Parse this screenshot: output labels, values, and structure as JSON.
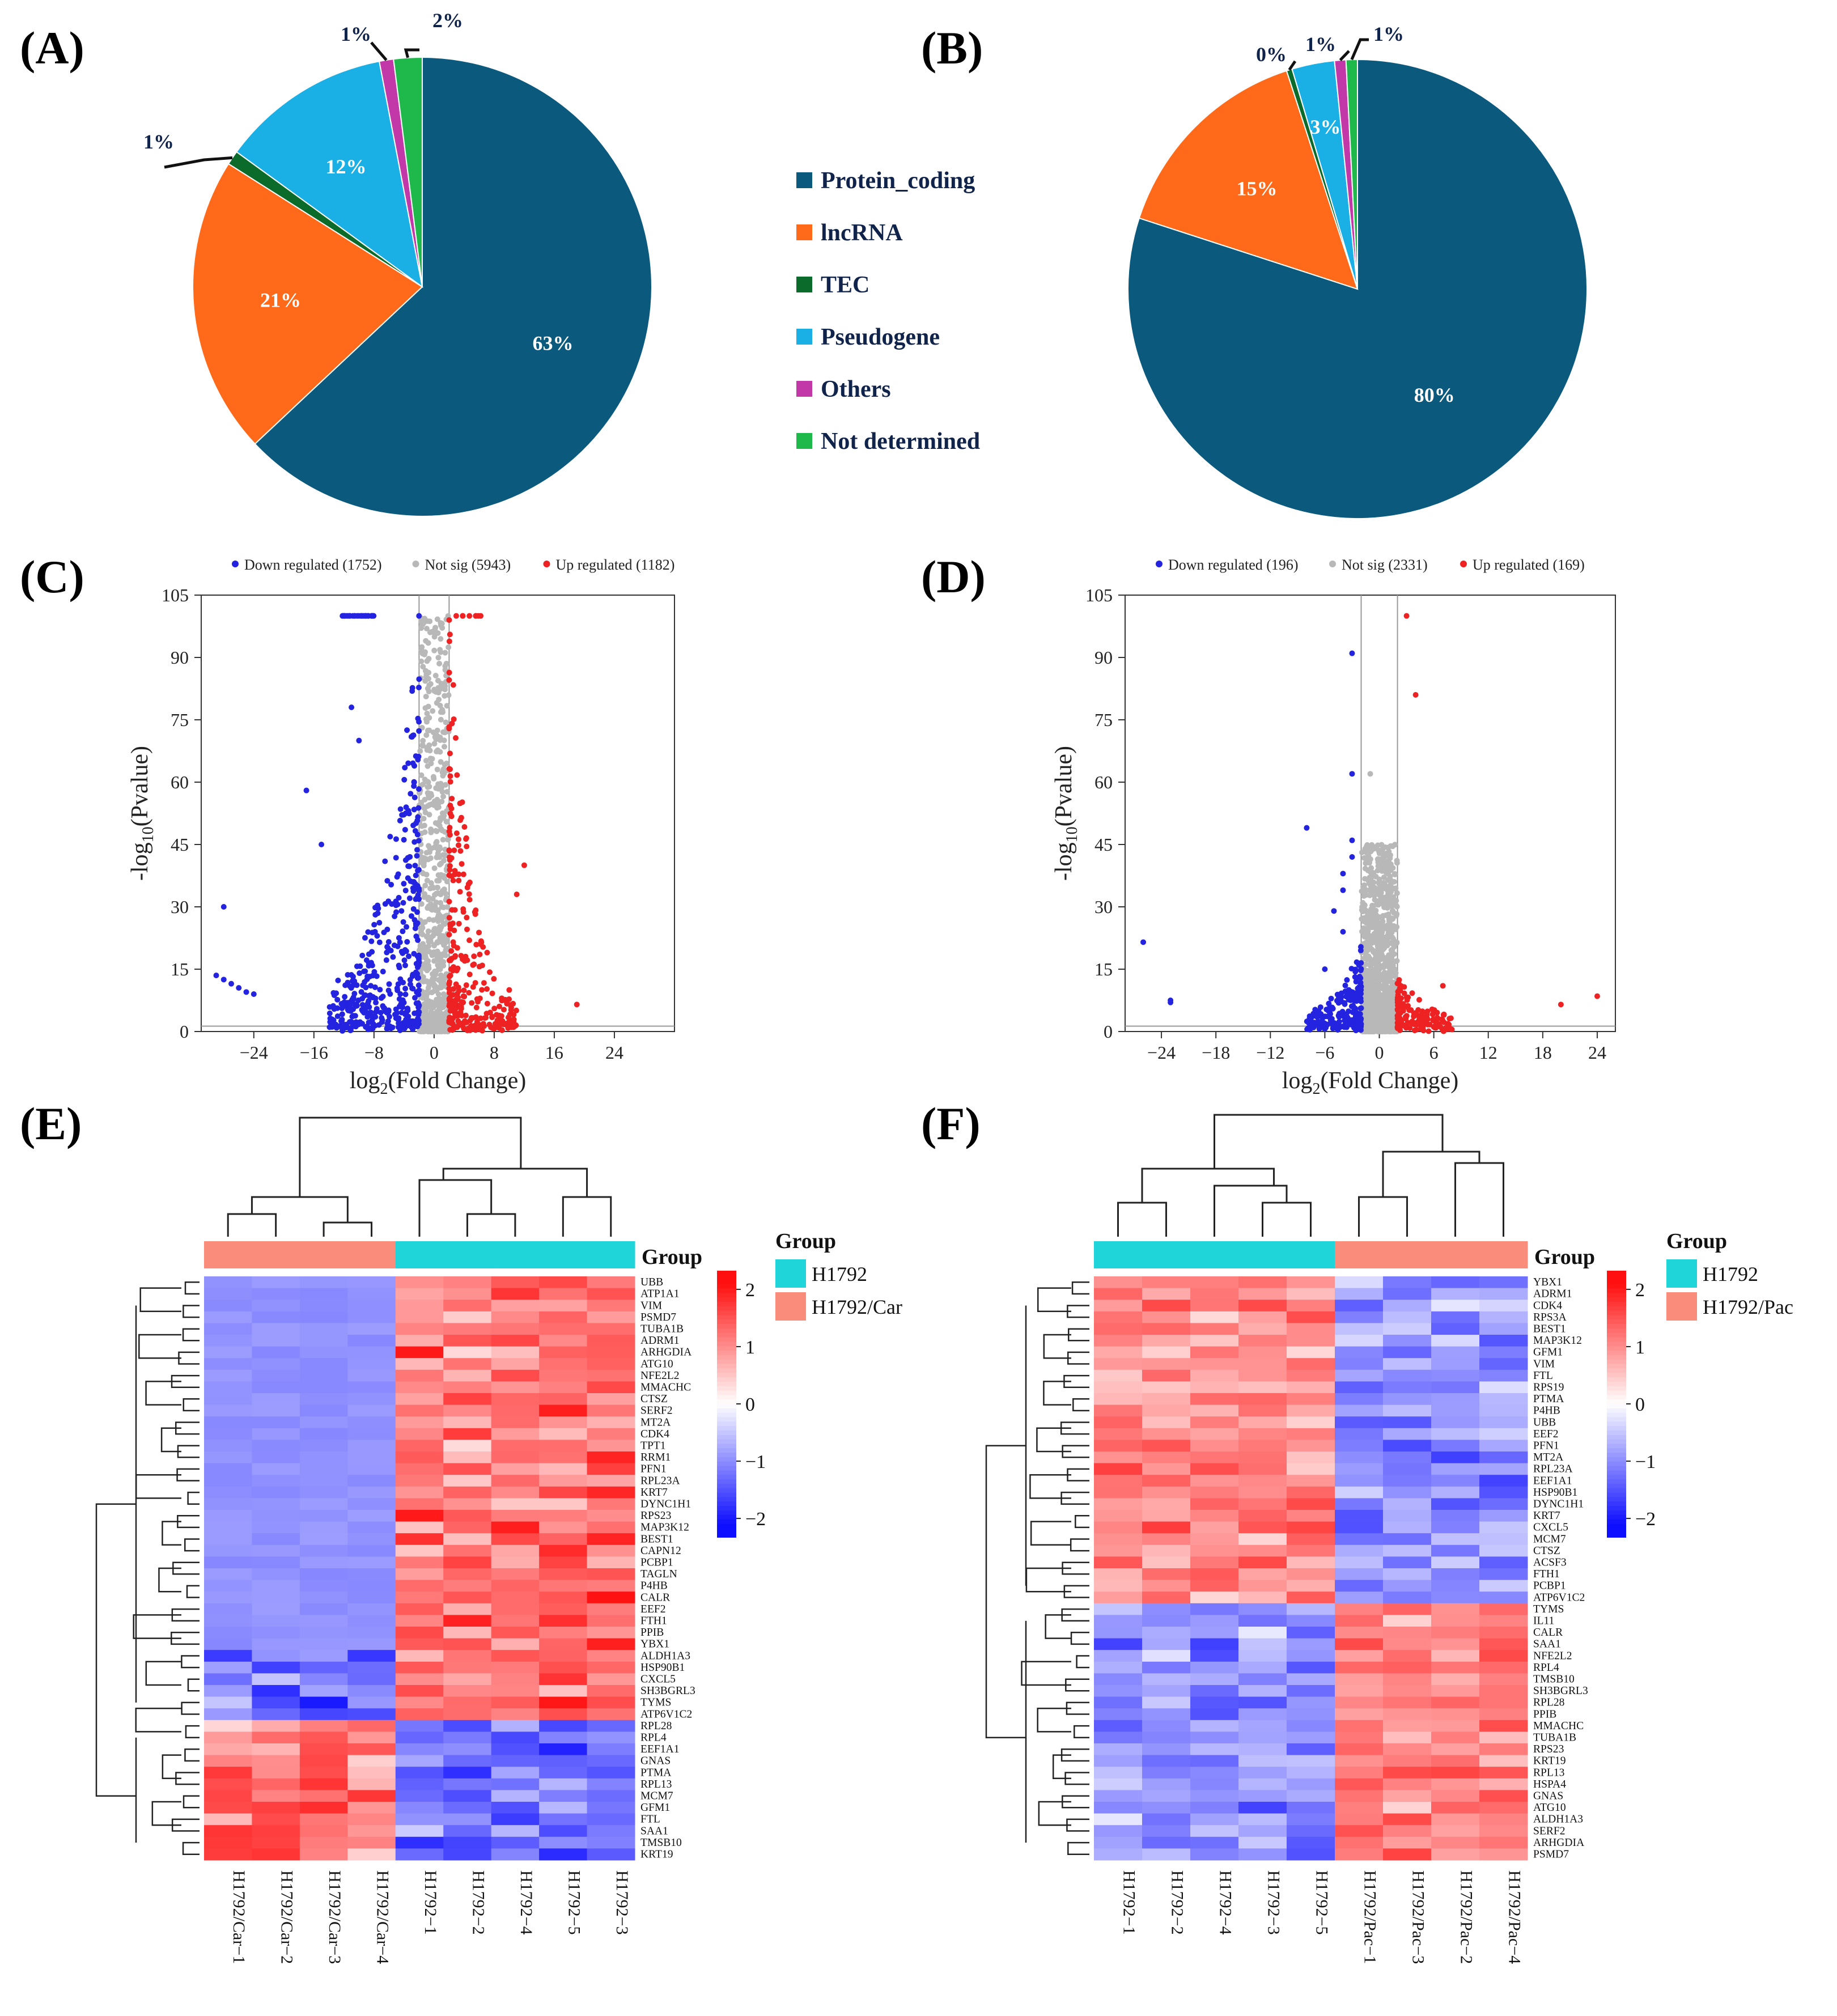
{
  "colors": {
    "protein_coding": "#0b5a7e",
    "lncrna": "#ff6a1a",
    "tec": "#0b6b2a",
    "pseudogene": "#1ab0e6",
    "others": "#c238a8",
    "not_determined": "#1fb84a",
    "down": "#2323e0",
    "notsig": "#b8b8b8",
    "up": "#ee2222",
    "h1792": "#1fd5d9",
    "h1792_treat": "#fa8c7c",
    "dark_text": "#10234a"
  },
  "legend_pie": {
    "items": [
      "Protein_coding",
      "lncRNA",
      "TEC",
      "Pseudogene",
      "Others",
      "Not determined"
    ]
  },
  "chart_data": [
    {
      "id": "A",
      "panel_label": "(A)",
      "type": "pie",
      "labels": [
        "Protein_coding",
        "lncRNA",
        "TEC",
        "Pseudogene",
        "Others",
        "Not determined"
      ],
      "values": [
        63,
        21,
        1,
        12,
        1,
        2
      ],
      "value_labels": [
        "63%",
        "21%",
        "1%",
        "12%",
        "1%",
        "2%"
      ]
    },
    {
      "id": "B",
      "panel_label": "(B)",
      "type": "pie",
      "labels": [
        "Protein_coding",
        "lncRNA",
        "TEC",
        "Pseudogene",
        "Others",
        "Not determined"
      ],
      "values": [
        80,
        15,
        0.4,
        3,
        0.8,
        0.8
      ],
      "value_labels": [
        "80%",
        "15%",
        "0%",
        "3%",
        "1%",
        "1%"
      ]
    },
    {
      "id": "C",
      "panel_label": "(C)",
      "type": "scatter",
      "legend": [
        "Down regulated (1752)",
        "Not sig (5943)",
        "Up regulated (1182)"
      ],
      "xlabel_main": "log",
      "xlabel_sub": "2",
      "xlabel_rest": "(Fold Change)",
      "ylabel_main": "-log",
      "ylabel_sub": "10",
      "ylabel_rest": "(Pvalue)",
      "xlim": [
        -31,
        32
      ],
      "ylim": [
        0,
        105
      ],
      "xticks": [
        -24,
        -16,
        -8,
        0,
        8,
        16,
        24
      ],
      "yticks": [
        0,
        15,
        30,
        45,
        60,
        75,
        90,
        105
      ],
      "fc_threshold": 2,
      "counts": [
        1752,
        5943,
        1182
      ],
      "outliers": [
        [
          -28,
          30
        ],
        [
          -29,
          13.5
        ],
        [
          -28,
          12.5
        ],
        [
          -27,
          11.5
        ],
        [
          -26,
          10.5
        ],
        [
          -25,
          9.5
        ],
        [
          -24,
          9
        ],
        [
          -17,
          58
        ],
        [
          -15,
          45
        ],
        [
          -11,
          78
        ],
        [
          -10,
          70
        ],
        [
          12,
          40
        ],
        [
          11,
          33
        ],
        [
          19,
          6.5
        ],
        [
          10,
          10
        ],
        [
          9,
          8
        ]
      ]
    },
    {
      "id": "D",
      "panel_label": "(D)",
      "type": "scatter",
      "legend": [
        "Down regulated (196)",
        "Not sig (2331)",
        "Up regulated (169)"
      ],
      "xlabel_main": "log",
      "xlabel_sub": "2",
      "xlabel_rest": "(Fold Change)",
      "ylabel_main": "-log",
      "ylabel_sub": "10",
      "ylabel_rest": "(Pvalue)",
      "xlim": [
        -28,
        26
      ],
      "ylim": [
        0,
        105
      ],
      "xticks": [
        -24,
        -18,
        -12,
        -6,
        0,
        6,
        12,
        18,
        24
      ],
      "yticks": [
        0,
        15,
        30,
        45,
        60,
        75,
        90,
        105
      ],
      "fc_threshold": 2,
      "counts": [
        196,
        2331,
        169
      ],
      "outliers": [
        [
          -3,
          91
        ],
        [
          -3,
          62
        ],
        [
          -8,
          49
        ],
        [
          -26,
          21.5
        ],
        [
          -23,
          7.5
        ],
        [
          -23,
          7
        ],
        [
          3,
          100
        ],
        [
          4,
          81
        ],
        [
          -3,
          46
        ],
        [
          -3,
          42
        ],
        [
          -4,
          38
        ],
        [
          -4,
          34
        ],
        [
          -5,
          29
        ],
        [
          -4,
          24
        ],
        [
          -6,
          15
        ],
        [
          20,
          6.5
        ],
        [
          24,
          8.5
        ],
        [
          7,
          11
        ],
        [
          -1,
          62
        ]
      ]
    },
    {
      "id": "E",
      "panel_label": "(E)",
      "type": "heatmap",
      "group_title": "Group",
      "legend_title": "Group",
      "groups": [
        "H1792",
        "H1792/Car"
      ],
      "samples": [
        "H1792/Car−1",
        "H1792/Car−2",
        "H1792/Car−3",
        "H1792/Car−4",
        "H1792−1",
        "H1792−2",
        "H1792−4",
        "H1792−5",
        "H1792−3"
      ],
      "sample_groups": [
        1,
        1,
        1,
        1,
        0,
        0,
        0,
        0,
        0
      ],
      "genes": [
        "UBB",
        "ATP1A1",
        "VIM",
        "PSMD7",
        "TUBA1B",
        "ADRM1",
        "ARHGDIA",
        "ATG10",
        "NFE2L2",
        "MMACHC",
        "CTSZ",
        "SERF2",
        "MT2A",
        "CDK4",
        "TPT1",
        "RRM1",
        "PFN1",
        "RPL23A",
        "KRT7",
        "DYNC1H1",
        "RPS23",
        "MAP3K12",
        "BEST1",
        "CAPN12",
        "PCBP1",
        "TAGLN",
        "P4HB",
        "CALR",
        "EEF2",
        "FTH1",
        "PPIB",
        "YBX1",
        "ALDH1A3",
        "HSP90B1",
        "CXCL5",
        "SH3BGRL3",
        "TYMS",
        "ATP6V1C2",
        "RPL28",
        "RPL4",
        "EEF1A1",
        "GNAS",
        "PTMA",
        "RPL13",
        "MCM7",
        "GFM1",
        "FTL",
        "SAA1",
        "TMSB10",
        "KRT19"
      ],
      "color_scale": [
        -2,
        2
      ],
      "colorbar_ticks": [
        "2",
        "1",
        "0",
        "−1",
        "−2"
      ]
    },
    {
      "id": "F",
      "panel_label": "(F)",
      "type": "heatmap",
      "group_title": "Group",
      "legend_title": "Group",
      "groups": [
        "H1792",
        "H1792/Pac"
      ],
      "samples": [
        "H1792−1",
        "H1792−2",
        "H1792−4",
        "H1792−3",
        "H1792−5",
        "H1792/Pac−1",
        "H1792/Pac−3",
        "H1792/Pac−2",
        "H1792/Pac−4"
      ],
      "sample_groups": [
        0,
        0,
        0,
        0,
        0,
        1,
        1,
        1,
        1
      ],
      "genes": [
        "YBX1",
        "ADRM1",
        "CDK4",
        "RPS3A",
        "BEST1",
        "MAP3K12",
        "GFM1",
        "VIM",
        "FTL",
        "RPS19",
        "PTMA",
        "P4HB",
        "UBB",
        "EEF2",
        "PFN1",
        "MT2A",
        "RPL23A",
        "EEF1A1",
        "HSP90B1",
        "DYNC1H1",
        "KRT7",
        "CXCL5",
        "MCM7",
        "CTSZ",
        "ACSF3",
        "FTH1",
        "PCBP1",
        "ATP6V1C2",
        "TYMS",
        "IL11",
        "CALR",
        "SAA1",
        "NFE2L2",
        "RPL4",
        "TMSB10",
        "SH3BGRL3",
        "RPL28",
        "PPIB",
        "MMACHC",
        "TUBA1B",
        "RPS23",
        "KRT19",
        "RPL13",
        "HSPA4",
        "GNAS",
        "ATG10",
        "ALDH1A3",
        "SERF2",
        "ARHGDIA",
        "PSMD7"
      ],
      "color_scale": [
        -2,
        2
      ],
      "colorbar_ticks": [
        "2",
        "1",
        "0",
        "−1",
        "−2"
      ]
    }
  ]
}
